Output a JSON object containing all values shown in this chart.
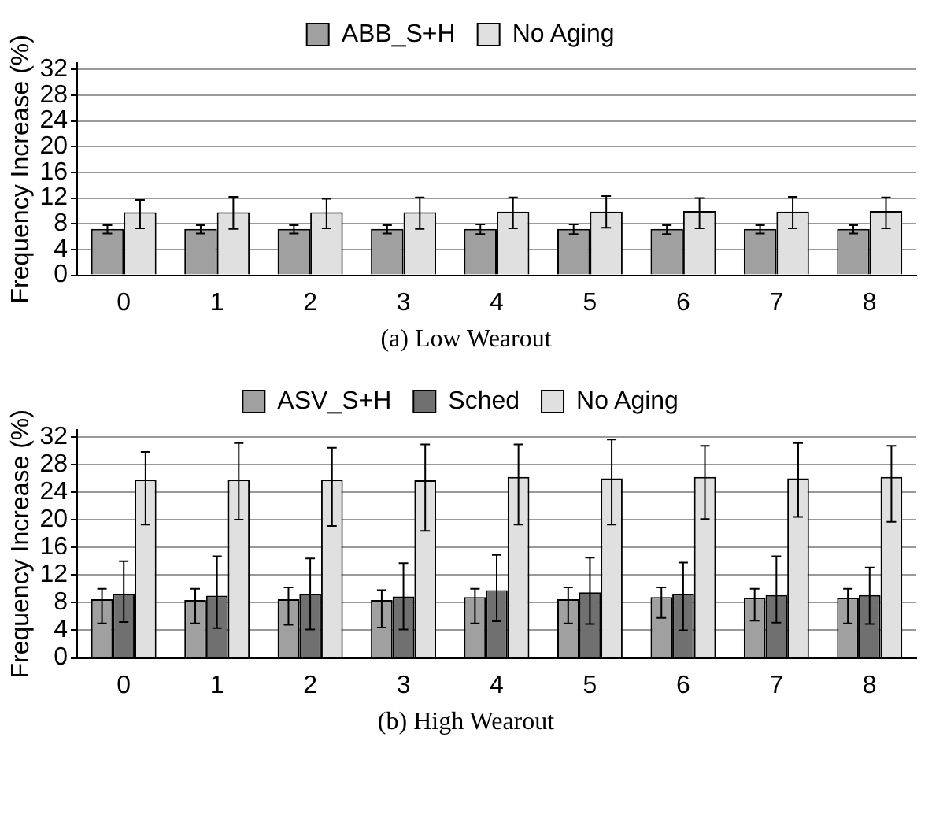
{
  "chart_data": [
    {
      "type": "bar",
      "title": "(a)  Low Wearout",
      "ylabel": "Frequency Increase (%)",
      "categories": [
        "0",
        "1",
        "2",
        "3",
        "4",
        "5",
        "6",
        "7",
        "8"
      ],
      "series": [
        {
          "name": "ABB_S+H",
          "color": "#a0a0a0",
          "values": [
            7.2,
            7.2,
            7.2,
            7.2,
            7.2,
            7.2,
            7.2,
            7.2,
            7.2
          ],
          "errors": [
            [
              6.5,
              7.8
            ],
            [
              6.5,
              7.8
            ],
            [
              6.5,
              7.8
            ],
            [
              6.5,
              7.8
            ],
            [
              6.4,
              7.9
            ],
            [
              6.4,
              7.9
            ],
            [
              6.4,
              7.8
            ],
            [
              6.5,
              7.8
            ],
            [
              6.5,
              7.8
            ]
          ]
        },
        {
          "name": "No Aging",
          "color": "#e0e0e0",
          "values": [
            9.8,
            9.8,
            9.8,
            9.8,
            9.9,
            9.9,
            10.0,
            9.9,
            10.0
          ],
          "errors": [
            [
              7.3,
              11.7
            ],
            [
              7.2,
              12.2
            ],
            [
              7.3,
              11.9
            ],
            [
              7.2,
              12.1
            ],
            [
              7.3,
              12.1
            ],
            [
              7.4,
              12.3
            ],
            [
              7.3,
              12.0
            ],
            [
              7.3,
              12.2
            ],
            [
              7.3,
              12.1
            ]
          ]
        }
      ],
      "ylim": [
        0,
        33
      ],
      "yticks": [
        0,
        4,
        8,
        12,
        16,
        20,
        24,
        28,
        32
      ],
      "grid": "y",
      "legend": "top"
    },
    {
      "type": "bar",
      "title": "(b)  High Wearout",
      "ylabel": "Frequency Increase (%)",
      "categories": [
        "0",
        "1",
        "2",
        "3",
        "4",
        "5",
        "6",
        "7",
        "8"
      ],
      "series": [
        {
          "name": "ASV_S+H",
          "color": "#a0a0a0",
          "values": [
            8.5,
            8.4,
            8.5,
            8.4,
            8.8,
            8.5,
            8.8,
            8.7,
            8.7
          ],
          "errors": [
            [
              5.0,
              10.0
            ],
            [
              5.0,
              10.0
            ],
            [
              4.8,
              10.2
            ],
            [
              4.4,
              9.8
            ],
            [
              5.0,
              10.0
            ],
            [
              5.0,
              10.2
            ],
            [
              5.8,
              10.2
            ],
            [
              5.4,
              10.0
            ],
            [
              5.0,
              10.0
            ]
          ]
        },
        {
          "name": "Sched",
          "color": "#707070",
          "values": [
            9.3,
            9.0,
            9.3,
            8.9,
            9.8,
            9.5,
            9.3,
            9.1,
            9.1
          ],
          "errors": [
            [
              5.2,
              14.0
            ],
            [
              4.3,
              14.7
            ],
            [
              4.1,
              14.4
            ],
            [
              4.1,
              13.7
            ],
            [
              5.3,
              14.9
            ],
            [
              4.9,
              14.5
            ],
            [
              4.0,
              13.8
            ],
            [
              5.1,
              14.7
            ],
            [
              4.9,
              13.1
            ]
          ]
        },
        {
          "name": "No Aging",
          "color": "#e0e0e0",
          "values": [
            25.8,
            25.8,
            25.8,
            25.7,
            26.2,
            26.0,
            26.2,
            26.0,
            26.2
          ],
          "errors": [
            [
              19.3,
              29.8
            ],
            [
              20.0,
              31.1
            ],
            [
              19.1,
              30.4
            ],
            [
              18.4,
              30.9
            ],
            [
              19.3,
              30.9
            ],
            [
              19.3,
              31.6
            ],
            [
              20.1,
              30.7
            ],
            [
              20.4,
              31.1
            ],
            [
              19.7,
              30.7
            ]
          ]
        }
      ],
      "ylim": [
        0,
        33
      ],
      "yticks": [
        0,
        4,
        8,
        12,
        16,
        20,
        24,
        28,
        32
      ],
      "grid": "y",
      "legend": "top"
    }
  ]
}
